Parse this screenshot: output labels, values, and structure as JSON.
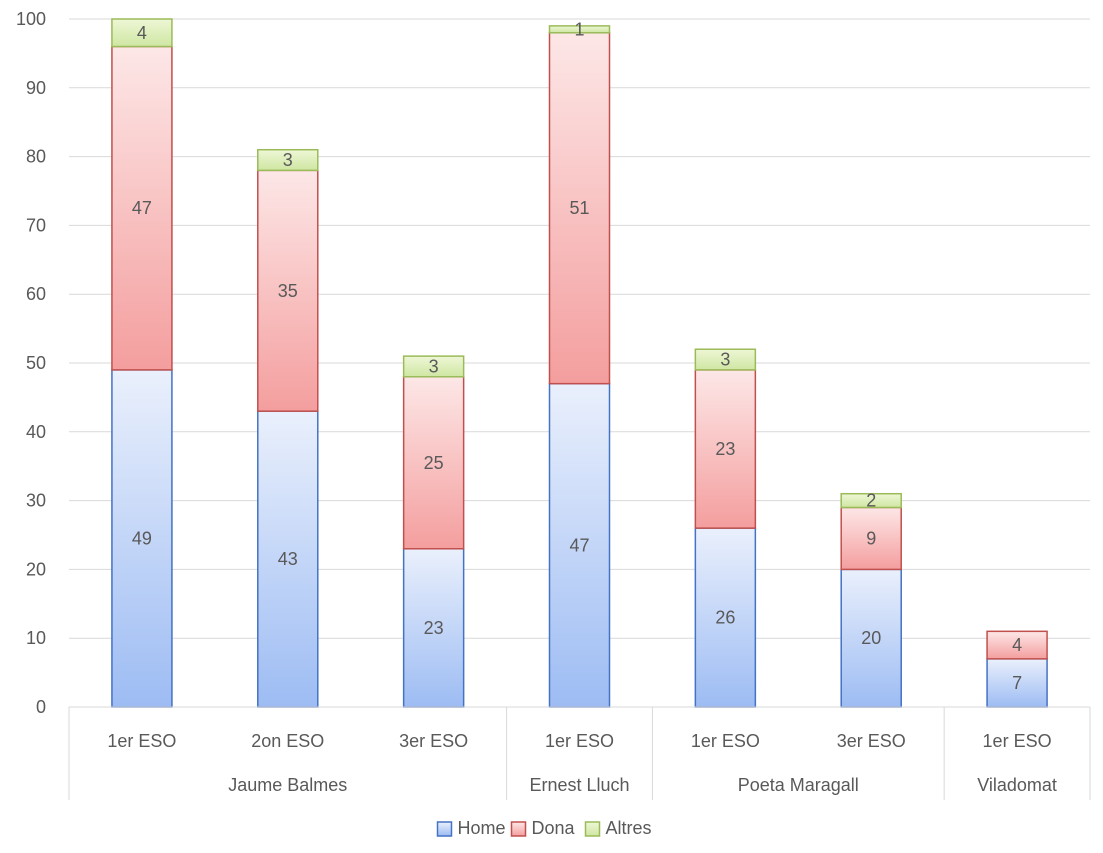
{
  "chart_data": {
    "type": "bar",
    "stacked": true,
    "groups": [
      {
        "name": "Jaume Balmes",
        "categories": [
          "1er ESO",
          "2on ESO",
          "3er ESO"
        ]
      },
      {
        "name": "Ernest Lluch",
        "categories": [
          "1er ESO"
        ]
      },
      {
        "name": "Poeta Maragall",
        "categories": [
          "1er ESO",
          "3er ESO"
        ]
      },
      {
        "name": "Viladomat",
        "categories": [
          "1er ESO"
        ]
      }
    ],
    "categories": [
      "1er ESO",
      "2on ESO",
      "3er ESO",
      "1er ESO",
      "1er ESO",
      "3er ESO",
      "1er ESO"
    ],
    "series": [
      {
        "name": "Home",
        "values": [
          49,
          43,
          23,
          47,
          26,
          20,
          7
        ],
        "color": "#4472c4",
        "fill_top": "#eaf0fc",
        "fill_bottom": "#9dbcf3"
      },
      {
        "name": "Dona",
        "values": [
          47,
          35,
          25,
          51,
          23,
          9,
          4
        ],
        "color": "#c0504d",
        "fill_top": "#fde7e7",
        "fill_bottom": "#f49e9e"
      },
      {
        "name": "Altres",
        "values": [
          4,
          3,
          3,
          1,
          3,
          2,
          0
        ],
        "color": "#9bbb59",
        "fill_top": "#eef7d6",
        "fill_bottom": "#cfe6a2"
      }
    ],
    "ylim": [
      0,
      100
    ],
    "yticks": [
      0,
      10,
      20,
      30,
      40,
      50,
      60,
      70,
      80,
      90,
      100
    ],
    "grid": true,
    "legend": "bottom",
    "title": "",
    "xlabel": "",
    "ylabel": ""
  }
}
